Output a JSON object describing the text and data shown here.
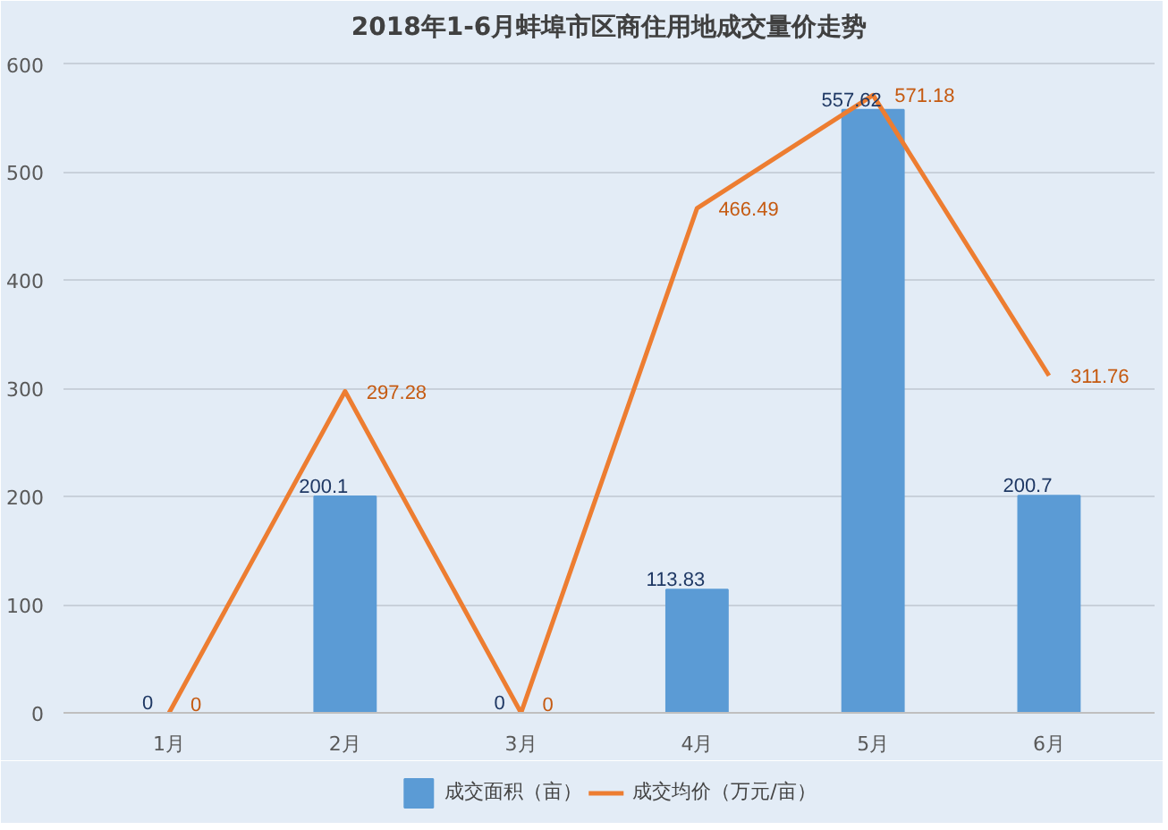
{
  "chart_data": {
    "type": "bar",
    "title": "2018年1-6月蚌埠市区商住用地成交量价走势",
    "categories": [
      "1月",
      "2月",
      "3月",
      "4月",
      "5月",
      "6月"
    ],
    "series": [
      {
        "name": "成交面积（亩）",
        "color": "#5b9bd5",
        "values": [
          0,
          200.1,
          0,
          113.83,
          557.62,
          200.7
        ]
      },
      {
        "name": "成交均价（万元/亩）",
        "type": "line",
        "color": "#ed7d31",
        "values": [
          0,
          297.28,
          0,
          466.49,
          571.18,
          311.76
        ]
      }
    ],
    "ylim": [
      0,
      600
    ],
    "yticks": [
      0,
      100,
      200,
      300,
      400,
      500,
      600
    ],
    "grid": "y",
    "legend": "bottom",
    "data_labels": true,
    "marker": "none",
    "line_style": "solid"
  }
}
